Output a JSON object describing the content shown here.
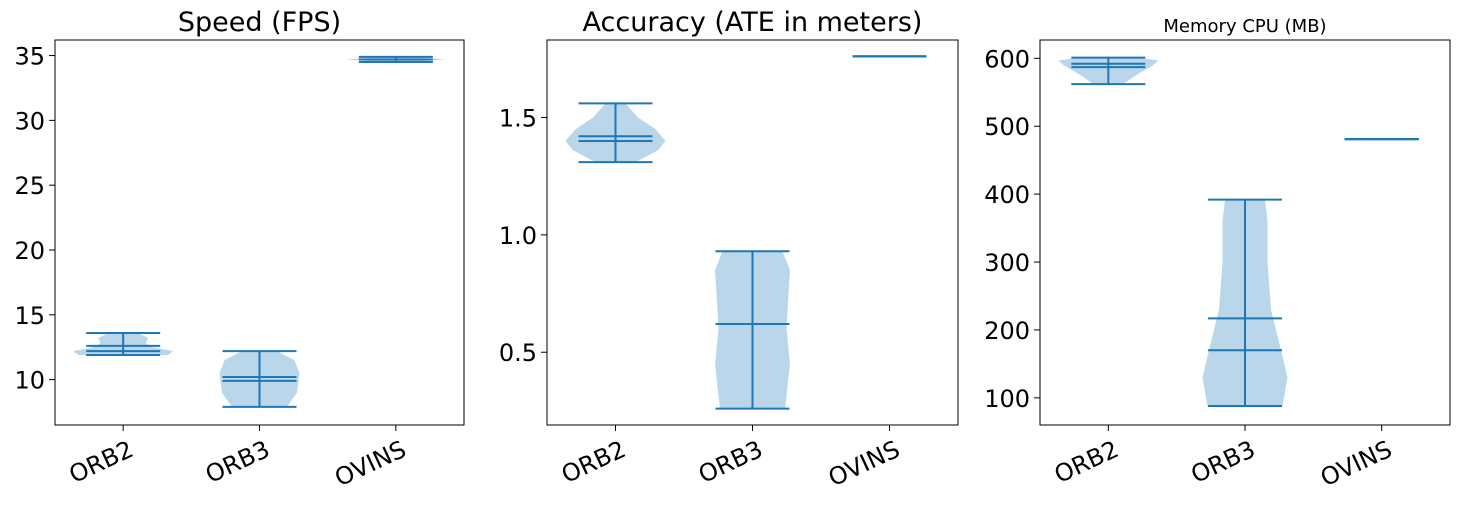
{
  "colors": {
    "violin_body": "#bad6ea",
    "violin_line": "#1f77b4"
  },
  "chart_data": [
    {
      "type": "violin",
      "title": "Speed (FPS)",
      "categories": [
        "ORB2",
        "ORB3",
        "OVINS"
      ],
      "ylim": [
        6.5,
        36.2
      ],
      "yticks": [
        10,
        15,
        20,
        25,
        30,
        35
      ],
      "grid": false,
      "series": [
        {
          "category": "ORB2",
          "min": 11.9,
          "max": 13.6,
          "mean": 12.6,
          "median": 12.2,
          "profile": [
            [
              11.9,
              0.9
            ],
            [
              12.2,
              1.0
            ],
            [
              12.5,
              0.6
            ],
            [
              12.8,
              0.45
            ],
            [
              13.2,
              0.5
            ],
            [
              13.6,
              0.3
            ]
          ]
        },
        {
          "category": "ORB3",
          "min": 7.9,
          "max": 12.2,
          "mean": 10.2,
          "median": 9.9,
          "profile": [
            [
              7.9,
              0.55
            ],
            [
              9.0,
              0.75
            ],
            [
              10.5,
              0.8
            ],
            [
              11.5,
              0.7
            ],
            [
              12.2,
              0.35
            ]
          ]
        },
        {
          "category": "OVINS",
          "min": 34.5,
          "max": 34.9,
          "mean": 34.7,
          "median": 34.7,
          "profile": [
            [
              34.5,
              0.3
            ],
            [
              34.7,
              1.0
            ],
            [
              34.9,
              0.3
            ]
          ]
        }
      ]
    },
    {
      "type": "violin",
      "title": "Accuracy (ATE in meters)",
      "categories": [
        "ORB2",
        "ORB3",
        "OVINS"
      ],
      "ylim": [
        0.19,
        1.83
      ],
      "yticks": [
        0.5,
        1.0,
        1.5
      ],
      "grid": false,
      "series": [
        {
          "category": "ORB2",
          "min": 1.31,
          "max": 1.56,
          "mean": 1.42,
          "median": 1.4,
          "profile": [
            [
              1.31,
              0.4
            ],
            [
              1.36,
              0.85
            ],
            [
              1.4,
              1.0
            ],
            [
              1.45,
              0.8
            ],
            [
              1.5,
              0.45
            ],
            [
              1.56,
              0.2
            ]
          ]
        },
        {
          "category": "ORB3",
          "min": 0.26,
          "max": 0.93,
          "mean": 0.62,
          "median": 0.62,
          "profile": [
            [
              0.26,
              0.65
            ],
            [
              0.45,
              0.75
            ],
            [
              0.6,
              0.68
            ],
            [
              0.75,
              0.72
            ],
            [
              0.85,
              0.75
            ],
            [
              0.93,
              0.6
            ]
          ]
        },
        {
          "category": "OVINS",
          "min": 1.76,
          "max": 1.76,
          "mean": 1.76,
          "median": 1.76,
          "profile": []
        }
      ]
    },
    {
      "type": "violin",
      "title": "Memory CPU (MB)",
      "categories": [
        "ORB2",
        "ORB3",
        "OVINS"
      ],
      "ylim": [
        60,
        627
      ],
      "yticks": [
        100,
        200,
        300,
        400,
        500,
        600
      ],
      "grid": false,
      "series": [
        {
          "category": "ORB2",
          "min": 562,
          "max": 601,
          "mean": 592,
          "median": 587,
          "profile": [
            [
              562,
              0.3
            ],
            [
              575,
              0.55
            ],
            [
              590,
              0.9
            ],
            [
              597,
              1.0
            ],
            [
              601,
              0.6
            ]
          ]
        },
        {
          "category": "ORB3",
          "min": 88,
          "max": 392,
          "mean": 217,
          "median": 170,
          "profile": [
            [
              88,
              0.75
            ],
            [
              130,
              0.85
            ],
            [
              170,
              0.72
            ],
            [
              230,
              0.52
            ],
            [
              300,
              0.45
            ],
            [
              360,
              0.45
            ],
            [
              392,
              0.4
            ]
          ]
        },
        {
          "category": "OVINS",
          "min": 481,
          "max": 481,
          "mean": 481,
          "median": 481,
          "profile": []
        }
      ]
    }
  ]
}
